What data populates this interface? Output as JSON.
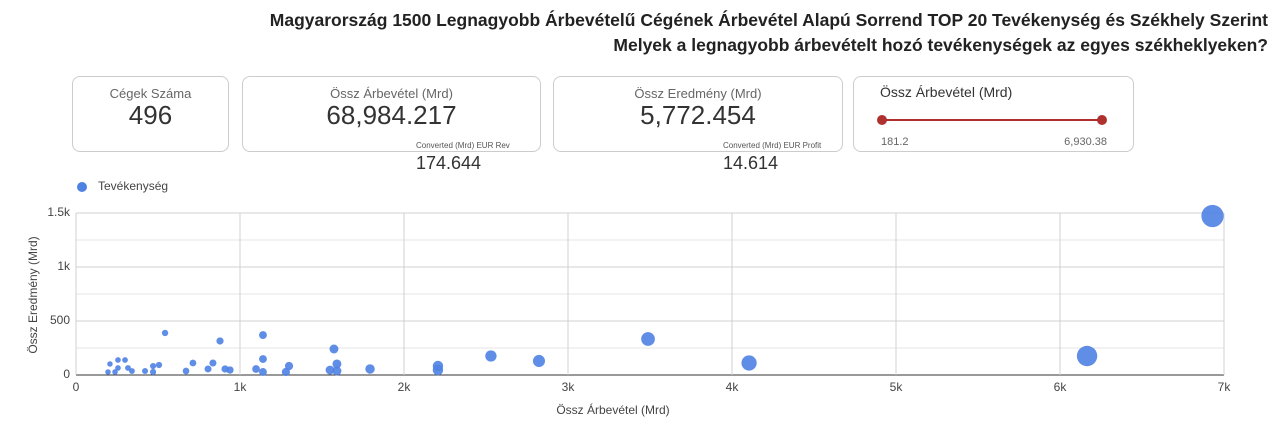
{
  "header": {
    "title": "Magyarország 1500 Legnagyobb Árbevételű Cégének Árbevétel Alapú Sorrend TOP 20 Tevékenység és Székhely Szerint",
    "subtitle": "Melyek a legnagyobb árbevételt hozó tevékenységek az egyes székheklyeken?"
  },
  "cards": [
    {
      "label": "Cégek Száma",
      "value": "496"
    },
    {
      "label": "Össz Árbevétel (Mrd)",
      "value": "68,984.217",
      "sub_label": "Converted (Mrd) EUR Rev",
      "sub_value": "174.644"
    },
    {
      "label": "Össz Eredmény (Mrd)",
      "value": "5,772.454",
      "sub_label": "Converted (Mrd) EUR Profit",
      "sub_value": "14.614"
    }
  ],
  "slider": {
    "label": "Össz Árbevétel (Mrd)",
    "min": "181.2",
    "max": "6,930.38"
  },
  "chart_data": {
    "type": "scatter",
    "x_label": "Össz Árbevétel (Mrd)",
    "y_label": "Össz Eredmény (Mrd)",
    "xlim": [
      0,
      7000
    ],
    "ylim": [
      0,
      1500
    ],
    "xticks": [
      0,
      {
        "value": 1000,
        "label": "1k"
      },
      {
        "value": 2000,
        "label": "2k"
      },
      {
        "value": 3000,
        "label": "3k"
      },
      {
        "value": 4000,
        "label": "4k"
      },
      {
        "value": 5000,
        "label": "5k"
      },
      {
        "value": 6000,
        "label": "6k"
      },
      {
        "value": 7000,
        "label": "7k"
      }
    ],
    "yticks": [
      0,
      500,
      {
        "value": 1000,
        "label": "1k"
      },
      {
        "value": 1500,
        "label": "1.5k"
      }
    ],
    "minor_gridlines": [
      250,
      750,
      1250
    ],
    "grid": true,
    "legend": "top-left",
    "series": [
      {
        "name": "Tevékenység",
        "color": "#4f82e3",
        "x": [
          6930,
          6165,
          4104,
          3488,
          2823,
          2530,
          2207,
          2207,
          1793,
          1591,
          1591,
          1573,
          1549,
          1299,
          1280,
          1140,
          1140,
          1140,
          1098,
          939,
          909,
          878,
          835,
          805,
          713,
          671,
          543,
          506,
          470,
          470,
          421,
          341,
          317,
          299,
          256,
          256,
          238,
          207,
          195
        ],
        "values": [
          1472,
          176,
          111,
          333,
          130,
          176,
          83,
          46,
          56,
          102,
          37,
          241,
          46,
          83,
          28,
          370,
          148,
          28,
          56,
          46,
          56,
          315,
          111,
          56,
          111,
          37,
          389,
          93,
          83,
          28,
          37,
          37,
          65,
          139,
          139,
          65,
          28,
          102,
          28
        ]
      }
    ]
  }
}
